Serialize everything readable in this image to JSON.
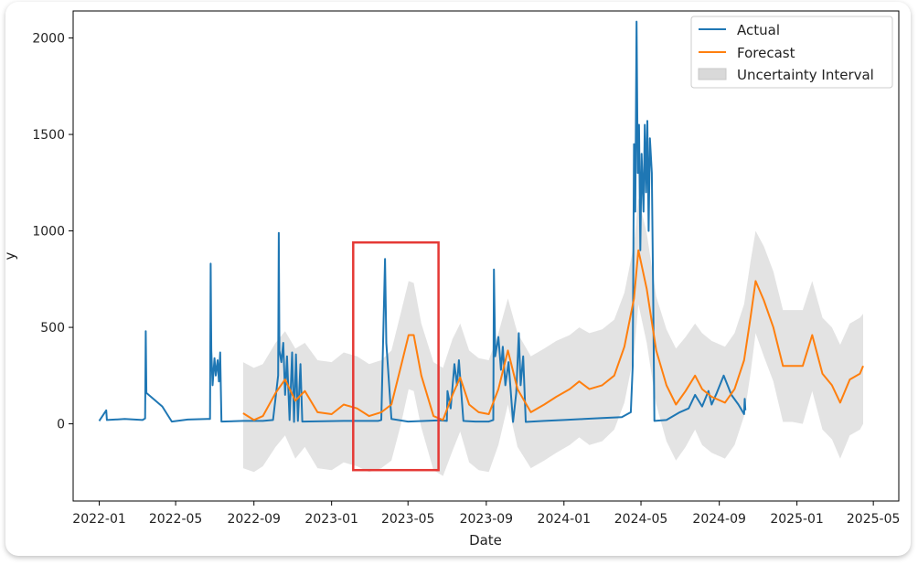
{
  "chart_data": {
    "type": "line",
    "title": "",
    "xlabel": "Date",
    "ylabel": "y",
    "x_ticks": [
      "2022-01",
      "2022-05",
      "2022-09",
      "2023-01",
      "2023-05",
      "2023-09",
      "2024-01",
      "2024-05",
      "2024-09",
      "2025-01",
      "2025-05"
    ],
    "y_ticks": [
      0,
      500,
      1000,
      1500,
      2000
    ],
    "xlim": [
      "2021-11-21",
      "2025-06-10"
    ],
    "ylim": [
      -400,
      2140
    ],
    "grid": false,
    "legend_position": "top-right",
    "colors": {
      "actual": "#1f77b4",
      "forecast": "#ff7f0e",
      "interval": "#d9d9d9",
      "highlight": "#e53935"
    },
    "series": [
      {
        "name": "Actual",
        "kind": "line",
        "points": [
          [
            "2022-01-01",
            15
          ],
          [
            "2022-01-12",
            70
          ],
          [
            "2022-01-13",
            20
          ],
          [
            "2022-02-10",
            25
          ],
          [
            "2022-03-10",
            20
          ],
          [
            "2022-03-14",
            28
          ],
          [
            "2022-03-15",
            480
          ],
          [
            "2022-03-16",
            160
          ],
          [
            "2022-04-10",
            90
          ],
          [
            "2022-04-25",
            12
          ],
          [
            "2022-05-20",
            22
          ],
          [
            "2022-06-20",
            25
          ],
          [
            "2022-06-24",
            25
          ],
          [
            "2022-06-25",
            830
          ],
          [
            "2022-06-26",
            380
          ],
          [
            "2022-06-28",
            200
          ],
          [
            "2022-07-01",
            340
          ],
          [
            "2022-07-03",
            250
          ],
          [
            "2022-07-06",
            330
          ],
          [
            "2022-07-08",
            220
          ],
          [
            "2022-07-10",
            370
          ],
          [
            "2022-07-12",
            12
          ],
          [
            "2022-08-15",
            15
          ],
          [
            "2022-09-15",
            15
          ],
          [
            "2022-10-01",
            20
          ],
          [
            "2022-10-09",
            250
          ],
          [
            "2022-10-10",
            990
          ],
          [
            "2022-10-11",
            380
          ],
          [
            "2022-10-14",
            320
          ],
          [
            "2022-10-17",
            420
          ],
          [
            "2022-10-20",
            150
          ],
          [
            "2022-10-23",
            350
          ],
          [
            "2022-10-27",
            20
          ],
          [
            "2022-10-31",
            370
          ],
          [
            "2022-11-03",
            10
          ],
          [
            "2022-11-06",
            360
          ],
          [
            "2022-11-09",
            15
          ],
          [
            "2022-11-13",
            310
          ],
          [
            "2022-11-16",
            12
          ],
          [
            "2023-01-20",
            15
          ],
          [
            "2023-03-15",
            15
          ],
          [
            "2023-03-20",
            20
          ],
          [
            "2023-03-26",
            855
          ],
          [
            "2023-03-28",
            420
          ],
          [
            "2023-04-05",
            25
          ],
          [
            "2023-05-01",
            12
          ],
          [
            "2023-06-20",
            18
          ],
          [
            "2023-07-01",
            15
          ],
          [
            "2023-07-02",
            170
          ],
          [
            "2023-07-07",
            80
          ],
          [
            "2023-07-13",
            310
          ],
          [
            "2023-07-17",
            200
          ],
          [
            "2023-07-20",
            330
          ],
          [
            "2023-07-27",
            15
          ],
          [
            "2023-08-15",
            12
          ],
          [
            "2023-09-05",
            12
          ],
          [
            "2023-09-12",
            20
          ],
          [
            "2023-09-13",
            800
          ],
          [
            "2023-09-15",
            350
          ],
          [
            "2023-09-20",
            450
          ],
          [
            "2023-09-24",
            280
          ],
          [
            "2023-09-27",
            400
          ],
          [
            "2023-10-01",
            200
          ],
          [
            "2023-10-06",
            320
          ],
          [
            "2023-10-13",
            10
          ],
          [
            "2023-10-18",
            160
          ],
          [
            "2023-10-22",
            470
          ],
          [
            "2023-10-25",
            200
          ],
          [
            "2023-10-29",
            350
          ],
          [
            "2023-11-02",
            10
          ],
          [
            "2023-12-01",
            15
          ],
          [
            "2024-01-01",
            20
          ],
          [
            "2024-02-01",
            25
          ],
          [
            "2024-03-01",
            30
          ],
          [
            "2024-04-01",
            35
          ],
          [
            "2024-04-15",
            60
          ],
          [
            "2024-04-18",
            300
          ],
          [
            "2024-04-20",
            1450
          ],
          [
            "2024-04-22",
            1100
          ],
          [
            "2024-04-24",
            2085
          ],
          [
            "2024-04-26",
            1300
          ],
          [
            "2024-04-28",
            1550
          ],
          [
            "2024-04-30",
            900
          ],
          [
            "2024-05-02",
            1400
          ],
          [
            "2024-05-05",
            1100
          ],
          [
            "2024-05-07",
            1550
          ],
          [
            "2024-05-09",
            1200
          ],
          [
            "2024-05-11",
            1570
          ],
          [
            "2024-05-13",
            1000
          ],
          [
            "2024-05-15",
            1480
          ],
          [
            "2024-05-18",
            1300
          ],
          [
            "2024-05-20",
            700
          ],
          [
            "2024-05-22",
            15
          ],
          [
            "2024-06-10",
            20
          ],
          [
            "2024-07-01",
            60
          ],
          [
            "2024-07-15",
            80
          ],
          [
            "2024-07-25",
            150
          ],
          [
            "2024-08-05",
            90
          ],
          [
            "2024-08-15",
            170
          ],
          [
            "2024-08-20",
            100
          ],
          [
            "2024-08-28",
            160
          ],
          [
            "2024-09-08",
            250
          ],
          [
            "2024-09-20",
            150
          ],
          [
            "2024-10-01",
            100
          ],
          [
            "2024-10-10",
            50
          ],
          [
            "2024-10-11",
            130
          ],
          [
            "2024-10-12",
            70
          ]
        ]
      },
      {
        "name": "Forecast",
        "kind": "line",
        "points": [
          [
            "2022-08-15",
            55
          ],
          [
            "2022-09-01",
            20
          ],
          [
            "2022-09-15",
            40
          ],
          [
            "2022-10-05",
            160
          ],
          [
            "2022-10-20",
            230
          ],
          [
            "2022-11-05",
            120
          ],
          [
            "2022-11-20",
            170
          ],
          [
            "2022-12-10",
            60
          ],
          [
            "2023-01-01",
            50
          ],
          [
            "2023-01-20",
            100
          ],
          [
            "2023-02-10",
            80
          ],
          [
            "2023-03-01",
            40
          ],
          [
            "2023-03-20",
            60
          ],
          [
            "2023-04-05",
            100
          ],
          [
            "2023-04-20",
            300
          ],
          [
            "2023-05-02",
            460
          ],
          [
            "2023-05-10",
            460
          ],
          [
            "2023-05-22",
            250
          ],
          [
            "2023-06-10",
            40
          ],
          [
            "2023-06-25",
            20
          ],
          [
            "2023-07-10",
            150
          ],
          [
            "2023-07-22",
            240
          ],
          [
            "2023-08-05",
            100
          ],
          [
            "2023-08-20",
            60
          ],
          [
            "2023-09-05",
            50
          ],
          [
            "2023-09-20",
            180
          ],
          [
            "2023-10-05",
            380
          ],
          [
            "2023-10-20",
            180
          ],
          [
            "2023-11-10",
            60
          ],
          [
            "2023-12-01",
            100
          ],
          [
            "2023-12-20",
            140
          ],
          [
            "2024-01-10",
            180
          ],
          [
            "2024-01-25",
            220
          ],
          [
            "2024-02-10",
            180
          ],
          [
            "2024-03-01",
            200
          ],
          [
            "2024-03-20",
            250
          ],
          [
            "2024-04-05",
            400
          ],
          [
            "2024-04-20",
            650
          ],
          [
            "2024-04-27",
            900
          ],
          [
            "2024-05-10",
            700
          ],
          [
            "2024-05-25",
            380
          ],
          [
            "2024-06-10",
            200
          ],
          [
            "2024-06-25",
            100
          ],
          [
            "2024-07-10",
            170
          ],
          [
            "2024-07-25",
            250
          ],
          [
            "2024-08-05",
            180
          ],
          [
            "2024-08-20",
            140
          ],
          [
            "2024-09-10",
            110
          ],
          [
            "2024-09-25",
            180
          ],
          [
            "2024-10-10",
            330
          ],
          [
            "2024-10-20",
            550
          ],
          [
            "2024-10-28",
            740
          ],
          [
            "2024-11-10",
            640
          ],
          [
            "2024-11-25",
            500
          ],
          [
            "2024-12-10",
            300
          ],
          [
            "2024-12-25",
            300
          ],
          [
            "2025-01-10",
            300
          ],
          [
            "2025-01-25",
            460
          ],
          [
            "2025-02-10",
            260
          ],
          [
            "2025-02-25",
            200
          ],
          [
            "2025-03-10",
            110
          ],
          [
            "2025-03-25",
            230
          ],
          [
            "2025-04-10",
            260
          ],
          [
            "2025-04-15",
            300
          ]
        ]
      },
      {
        "name": "Uncertainty Interval",
        "kind": "band",
        "points": [
          [
            "2022-08-15",
            -230,
            320
          ],
          [
            "2022-09-01",
            -250,
            290
          ],
          [
            "2022-09-15",
            -220,
            310
          ],
          [
            "2022-10-05",
            -120,
            420
          ],
          [
            "2022-10-20",
            -60,
            480
          ],
          [
            "2022-11-05",
            -180,
            390
          ],
          [
            "2022-11-20",
            -120,
            420
          ],
          [
            "2022-12-10",
            -230,
            330
          ],
          [
            "2023-01-01",
            -240,
            320
          ],
          [
            "2023-01-20",
            -200,
            370
          ],
          [
            "2023-02-10",
            -220,
            350
          ],
          [
            "2023-03-01",
            -250,
            310
          ],
          [
            "2023-03-20",
            -230,
            330
          ],
          [
            "2023-04-05",
            -190,
            380
          ],
          [
            "2023-04-20",
            0,
            580
          ],
          [
            "2023-05-02",
            180,
            740
          ],
          [
            "2023-05-10",
            170,
            730
          ],
          [
            "2023-05-22",
            -20,
            520
          ],
          [
            "2023-06-10",
            -240,
            320
          ],
          [
            "2023-06-25",
            -270,
            290
          ],
          [
            "2023-07-10",
            -140,
            440
          ],
          [
            "2023-07-22",
            -40,
            520
          ],
          [
            "2023-08-05",
            -200,
            380
          ],
          [
            "2023-08-20",
            -240,
            340
          ],
          [
            "2023-09-05",
            -250,
            330
          ],
          [
            "2023-09-20",
            -110,
            470
          ],
          [
            "2023-10-05",
            100,
            650
          ],
          [
            "2023-10-20",
            -120,
            470
          ],
          [
            "2023-11-10",
            -230,
            350
          ],
          [
            "2023-12-01",
            -190,
            390
          ],
          [
            "2023-12-20",
            -150,
            430
          ],
          [
            "2024-01-10",
            -110,
            460
          ],
          [
            "2024-01-25",
            -70,
            500
          ],
          [
            "2024-02-10",
            -110,
            470
          ],
          [
            "2024-03-01",
            -90,
            490
          ],
          [
            "2024-03-20",
            -30,
            540
          ],
          [
            "2024-04-05",
            110,
            680
          ],
          [
            "2024-04-20",
            360,
            930
          ],
          [
            "2024-04-27",
            620,
            1170
          ],
          [
            "2024-05-10",
            420,
            990
          ],
          [
            "2024-05-25",
            100,
            660
          ],
          [
            "2024-06-10",
            -90,
            490
          ],
          [
            "2024-06-25",
            -190,
            390
          ],
          [
            "2024-07-10",
            -120,
            450
          ],
          [
            "2024-07-25",
            -30,
            520
          ],
          [
            "2024-08-05",
            -110,
            470
          ],
          [
            "2024-08-20",
            -150,
            430
          ],
          [
            "2024-09-10",
            -180,
            400
          ],
          [
            "2024-09-25",
            -110,
            470
          ],
          [
            "2024-10-10",
            40,
            620
          ],
          [
            "2024-10-20",
            260,
            840
          ],
          [
            "2024-10-28",
            470,
            1000
          ],
          [
            "2024-11-10",
            350,
            920
          ],
          [
            "2024-11-25",
            220,
            790
          ],
          [
            "2024-12-10",
            10,
            590
          ],
          [
            "2024-12-25",
            10,
            590
          ],
          [
            "2025-01-10",
            0,
            590
          ],
          [
            "2025-01-25",
            170,
            740
          ],
          [
            "2025-02-10",
            -30,
            550
          ],
          [
            "2025-02-25",
            -80,
            500
          ],
          [
            "2025-03-10",
            -180,
            410
          ],
          [
            "2025-03-25",
            -60,
            520
          ],
          [
            "2025-04-10",
            -30,
            550
          ],
          [
            "2025-04-15",
            0,
            570
          ]
        ]
      }
    ],
    "annotations": [
      {
        "type": "rectangle",
        "x_range": [
          "2023-02-04",
          "2023-06-18"
        ],
        "y_range": [
          -240,
          940
        ]
      }
    ]
  }
}
